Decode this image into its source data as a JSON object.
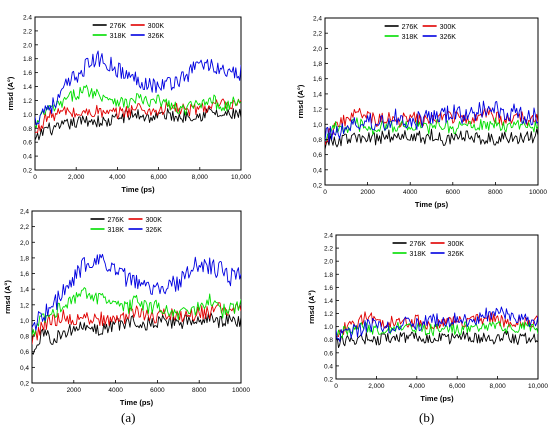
{
  "chart_data": [
    {
      "type": "line",
      "title": "",
      "xlabel": "Time (ps)",
      "ylabel": "rmsd (A°)",
      "xlim": [
        0,
        10000
      ],
      "ylim": [
        0.2,
        2.4
      ],
      "x_ticks": [
        0,
        2000,
        4000,
        6000,
        8000,
        10000
      ],
      "x_tick_labels": [
        "0",
        "2,000",
        "4,000",
        "6,000",
        "8,000",
        "10,000"
      ],
      "y_ticks": [
        0.2,
        0.4,
        0.6,
        0.8,
        1.0,
        1.2,
        1.4,
        1.6,
        1.8,
        2.0,
        2.2,
        2.4
      ],
      "y_tick_labels": [
        "0.2",
        "0.4",
        "0.6",
        "0.8",
        "1.0",
        "1.2",
        "1.4",
        "1.6",
        "1.8",
        "2.0",
        "2.2",
        "2.4"
      ],
      "legend_placement": "top",
      "grid": false,
      "x": [
        0,
        500,
        1000,
        1500,
        2000,
        2500,
        3000,
        3500,
        4000,
        4500,
        5000,
        5500,
        6000,
        6500,
        7000,
        7500,
        8000,
        8500,
        9000,
        9500,
        10000
      ],
      "series": [
        {
          "name": "276K",
          "color": "#000000",
          "values": [
            0.6,
            0.8,
            0.78,
            0.85,
            0.88,
            0.92,
            0.9,
            0.88,
            0.95,
            0.98,
            1.0,
            0.95,
            0.98,
            1.0,
            0.95,
            1.0,
            0.98,
            1.05,
            0.98,
            1.0,
            1.0
          ]
        },
        {
          "name": "300K",
          "color": "#e00000",
          "values": [
            0.7,
            0.95,
            1.0,
            1.05,
            1.0,
            1.02,
            1.05,
            1.0,
            1.02,
            1.05,
            1.1,
            1.05,
            1.05,
            1.1,
            1.08,
            1.05,
            1.1,
            1.1,
            1.15,
            1.1,
            1.15
          ]
        },
        {
          "name": "318K",
          "color": "#00dd00",
          "values": [
            0.8,
            1.05,
            1.1,
            1.2,
            1.3,
            1.35,
            1.3,
            1.25,
            1.2,
            1.15,
            1.25,
            1.15,
            1.2,
            1.15,
            1.05,
            1.1,
            1.15,
            1.25,
            1.1,
            1.15,
            1.2
          ]
        },
        {
          "name": "326K",
          "color": "#0000e0",
          "values": [
            0.9,
            1.1,
            1.15,
            1.4,
            1.55,
            1.7,
            1.8,
            1.75,
            1.65,
            1.55,
            1.5,
            1.45,
            1.4,
            1.45,
            1.5,
            1.6,
            1.75,
            1.7,
            1.65,
            1.55,
            1.6
          ]
        }
      ]
    },
    {
      "type": "line",
      "title": "",
      "xlabel": "Time (ps)",
      "ylabel": "rmsd (A°)",
      "xlim": [
        0,
        10000
      ],
      "ylim": [
        0.2,
        2.4
      ],
      "x_ticks": [
        0,
        2000,
        4000,
        6000,
        8000,
        10000
      ],
      "x_tick_labels": [
        "0",
        "2000",
        "4000",
        "6000",
        "8000",
        "10000"
      ],
      "y_ticks": [
        0.2,
        0.4,
        0.6,
        0.8,
        1.0,
        1.2,
        1.4,
        1.6,
        1.8,
        2.0,
        2.2,
        2.4
      ],
      "y_tick_labels": [
        "0,2",
        "0,4",
        "0,6",
        "0,8",
        "1,0",
        "1,2",
        "1,4",
        "1,6",
        "1,8",
        "2,0",
        "2,2",
        "2,4"
      ],
      "legend_placement": "top",
      "grid": false,
      "x": [
        0,
        500,
        1000,
        1500,
        2000,
        2500,
        3000,
        3500,
        4000,
        4500,
        5000,
        5500,
        6000,
        6500,
        7000,
        7500,
        8000,
        8500,
        9000,
        9500,
        10000
      ],
      "series": [
        {
          "name": "276K",
          "color": "#000000",
          "values": [
            0.75,
            0.78,
            0.8,
            0.82,
            0.8,
            0.82,
            0.85,
            0.83,
            0.85,
            0.82,
            0.85,
            0.8,
            0.83,
            0.85,
            0.8,
            0.83,
            0.8,
            0.85,
            0.8,
            0.82,
            0.85
          ]
        },
        {
          "name": "300K",
          "color": "#e00000",
          "values": [
            0.8,
            1.0,
            1.05,
            1.15,
            1.1,
            1.05,
            1.1,
            1.05,
            1.1,
            1.05,
            1.05,
            1.1,
            1.1,
            1.05,
            1.1,
            1.15,
            1.1,
            1.05,
            1.1,
            1.05,
            1.1
          ]
        },
        {
          "name": "318K",
          "color": "#00dd00",
          "values": [
            0.85,
            0.95,
            0.95,
            1.0,
            0.95,
            0.95,
            1.0,
            0.95,
            1.0,
            0.95,
            0.95,
            1.0,
            0.95,
            1.0,
            0.95,
            1.0,
            1.0,
            0.95,
            0.98,
            1.0,
            0.95
          ]
        },
        {
          "name": "326K",
          "color": "#0000e0",
          "values": [
            0.85,
            0.9,
            0.95,
            1.0,
            1.05,
            1.0,
            1.05,
            1.1,
            1.05,
            1.05,
            1.1,
            1.1,
            1.15,
            1.1,
            1.15,
            1.2,
            1.2,
            1.15,
            1.15,
            1.1,
            1.1
          ]
        }
      ]
    },
    {
      "type": "line",
      "title": "",
      "xlabel": "Time (ps)",
      "ylabel": "rmsd (A°)",
      "xlim": [
        0,
        10000
      ],
      "ylim": [
        0.2,
        2.4
      ],
      "x_ticks": [
        0,
        2000,
        4000,
        6000,
        8000,
        10000
      ],
      "x_tick_labels": [
        "0",
        "2000",
        "4000",
        "6000",
        "8000",
        "10000"
      ],
      "y_ticks": [
        0.2,
        0.4,
        0.6,
        0.8,
        1.0,
        1.2,
        1.4,
        1.6,
        1.8,
        2.0,
        2.2,
        2.4
      ],
      "y_tick_labels": [
        "0,2",
        "0,4",
        "0,6",
        "0,8",
        "1,0",
        "1,2",
        "1,4",
        "1,6",
        "1,8",
        "2,0",
        "2,2",
        "2,4"
      ],
      "legend_placement": "top",
      "grid": false,
      "x": [
        0,
        500,
        1000,
        1500,
        2000,
        2500,
        3000,
        3500,
        4000,
        4500,
        5000,
        5500,
        6000,
        6500,
        7000,
        7500,
        8000,
        8500,
        9000,
        9500,
        10000
      ],
      "series": [
        {
          "name": "276K",
          "color": "#000000",
          "values": [
            0.6,
            0.8,
            0.78,
            0.85,
            0.88,
            0.92,
            0.9,
            0.88,
            0.95,
            0.98,
            1.0,
            0.95,
            0.98,
            1.0,
            0.95,
            1.0,
            0.98,
            1.05,
            0.98,
            1.0,
            1.0
          ]
        },
        {
          "name": "300K",
          "color": "#e00000",
          "values": [
            0.7,
            0.95,
            1.0,
            1.05,
            1.0,
            1.02,
            1.05,
            1.0,
            1.02,
            1.05,
            1.1,
            1.05,
            1.05,
            1.1,
            1.08,
            1.05,
            1.1,
            1.1,
            1.15,
            1.1,
            1.15
          ]
        },
        {
          "name": "318K",
          "color": "#00dd00",
          "values": [
            0.8,
            1.05,
            1.1,
            1.2,
            1.3,
            1.35,
            1.3,
            1.25,
            1.2,
            1.15,
            1.25,
            1.15,
            1.2,
            1.15,
            1.05,
            1.1,
            1.15,
            1.25,
            1.1,
            1.15,
            1.2
          ]
        },
        {
          "name": "326K",
          "color": "#0000e0",
          "values": [
            0.9,
            1.1,
            1.15,
            1.4,
            1.55,
            1.7,
            1.8,
            1.75,
            1.65,
            1.55,
            1.5,
            1.45,
            1.4,
            1.45,
            1.5,
            1.6,
            1.75,
            1.7,
            1.65,
            1.55,
            1.6
          ]
        }
      ]
    },
    {
      "type": "line",
      "title": "",
      "xlabel": "Time (ps)",
      "ylabel": "rmsd (A°)",
      "xlim": [
        0,
        10000
      ],
      "ylim": [
        0.2,
        2.4
      ],
      "x_ticks": [
        0,
        2000,
        4000,
        6000,
        8000,
        10000
      ],
      "x_tick_labels": [
        "0",
        "2,000",
        "4,000",
        "6,000",
        "8,000",
        "10,000"
      ],
      "y_ticks": [
        0.2,
        0.4,
        0.6,
        0.8,
        1.0,
        1.2,
        1.4,
        1.6,
        1.8,
        2.0,
        2.2,
        2.4
      ],
      "y_tick_labels": [
        "0.2",
        "0.4",
        "0.6",
        "0.8",
        "1.0",
        "1.2",
        "1.4",
        "1.6",
        "1.8",
        "2.0",
        "2.2",
        "2.4"
      ],
      "legend_placement": "top",
      "grid": false,
      "x": [
        0,
        500,
        1000,
        1500,
        2000,
        2500,
        3000,
        3500,
        4000,
        4500,
        5000,
        5500,
        6000,
        6500,
        7000,
        7500,
        8000,
        8500,
        9000,
        9500,
        10000
      ],
      "series": [
        {
          "name": "276K",
          "color": "#000000",
          "values": [
            0.75,
            0.78,
            0.8,
            0.82,
            0.8,
            0.82,
            0.85,
            0.83,
            0.85,
            0.82,
            0.85,
            0.8,
            0.83,
            0.85,
            0.8,
            0.83,
            0.8,
            0.85,
            0.8,
            0.82,
            0.85
          ]
        },
        {
          "name": "300K",
          "color": "#e00000",
          "values": [
            0.8,
            1.0,
            1.05,
            1.15,
            1.1,
            1.05,
            1.1,
            1.05,
            1.1,
            1.05,
            1.05,
            1.1,
            1.1,
            1.05,
            1.1,
            1.15,
            1.1,
            1.05,
            1.1,
            1.05,
            1.1
          ]
        },
        {
          "name": "318K",
          "color": "#00dd00",
          "values": [
            0.85,
            0.95,
            0.95,
            1.0,
            0.95,
            0.95,
            1.0,
            0.95,
            1.0,
            0.95,
            0.95,
            1.0,
            0.95,
            1.0,
            0.95,
            1.0,
            1.0,
            0.95,
            0.98,
            1.0,
            0.95
          ]
        },
        {
          "name": "326K",
          "color": "#0000e0",
          "values": [
            0.85,
            0.9,
            0.95,
            1.0,
            1.05,
            1.0,
            1.05,
            1.1,
            1.05,
            1.05,
            1.1,
            1.1,
            1.15,
            1.1,
            1.15,
            1.2,
            1.2,
            1.15,
            1.15,
            1.1,
            1.1
          ]
        }
      ]
    }
  ],
  "captions": {
    "left": "(a)",
    "right": "(b)"
  }
}
